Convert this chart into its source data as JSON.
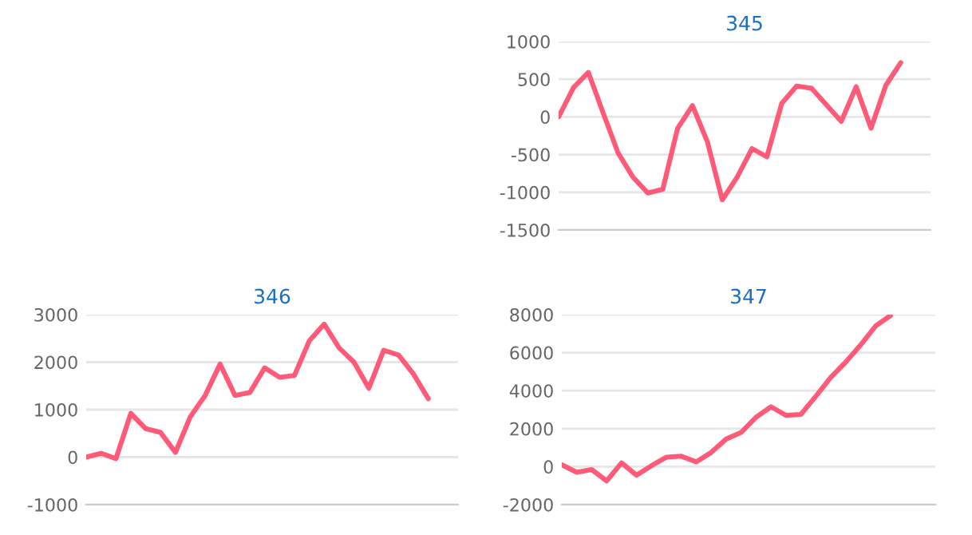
{
  "chart_data": [
    {
      "type": "line",
      "title": "345",
      "categories": [
        null,
        null,
        null,
        null,
        null,
        null,
        null,
        null,
        null,
        null,
        null,
        null,
        null,
        null,
        null,
        null,
        null,
        null,
        null,
        null,
        null,
        null,
        null,
        null,
        null,
        null
      ],
      "series": [
        {
          "color": "#ff5a78",
          "values": [
            0,
            390,
            590,
            50,
            -480,
            -800,
            -1010,
            -960,
            -150,
            150,
            -330,
            -1100,
            -800,
            -420,
            -530,
            180,
            410,
            380,
            160,
            -60,
            400,
            -150,
            420,
            720,
            null,
            null
          ]
        }
      ],
      "ylim": [
        -1500,
        1000
      ],
      "yticks": [
        -1500,
        -1000,
        -500,
        0,
        500,
        1000
      ],
      "grid": "y",
      "tick_labels": "y",
      "marker": "none",
      "line_style": "solid"
    },
    {
      "type": "line",
      "title": "346",
      "categories": [
        null,
        null,
        null,
        null,
        null,
        null,
        null,
        null,
        null,
        null,
        null,
        null,
        null,
        null,
        null,
        null,
        null,
        null,
        null,
        null,
        null,
        null,
        null,
        null,
        null,
        null
      ],
      "series": [
        {
          "color": "#ff5a78",
          "values": [
            0,
            80,
            -30,
            920,
            600,
            520,
            100,
            850,
            1300,
            1960,
            1300,
            1360,
            1880,
            1680,
            1720,
            2450,
            2800,
            2300,
            2000,
            1450,
            2250,
            2150,
            1750,
            1230,
            null,
            null
          ]
        }
      ],
      "ylim": [
        -1000,
        3000
      ],
      "yticks": [
        -1000,
        0,
        1000,
        2000,
        3000
      ],
      "grid": "y",
      "tick_labels": "y",
      "marker": "none",
      "line_style": "solid"
    },
    {
      "type": "line",
      "title": "347",
      "categories": [
        null,
        null,
        null,
        null,
        null,
        null,
        null,
        null,
        null,
        null,
        null,
        null,
        null,
        null,
        null,
        null,
        null,
        null,
        null,
        null,
        null,
        null,
        null,
        null,
        null,
        null
      ],
      "series": [
        {
          "color": "#ff5a78",
          "values": [
            100,
            -300,
            -150,
            -750,
            200,
            -450,
            50,
            500,
            550,
            250,
            750,
            1450,
            1800,
            2600,
            3150,
            2700,
            2750,
            3700,
            4700,
            5500,
            6400,
            7400,
            7950,
            null,
            null,
            null
          ]
        }
      ],
      "ylim": [
        -2000,
        8000
      ],
      "yticks": [
        -2000,
        0,
        2000,
        4000,
        6000,
        8000
      ],
      "grid": "y",
      "tick_labels": "y",
      "marker": "none",
      "line_style": "solid"
    }
  ]
}
